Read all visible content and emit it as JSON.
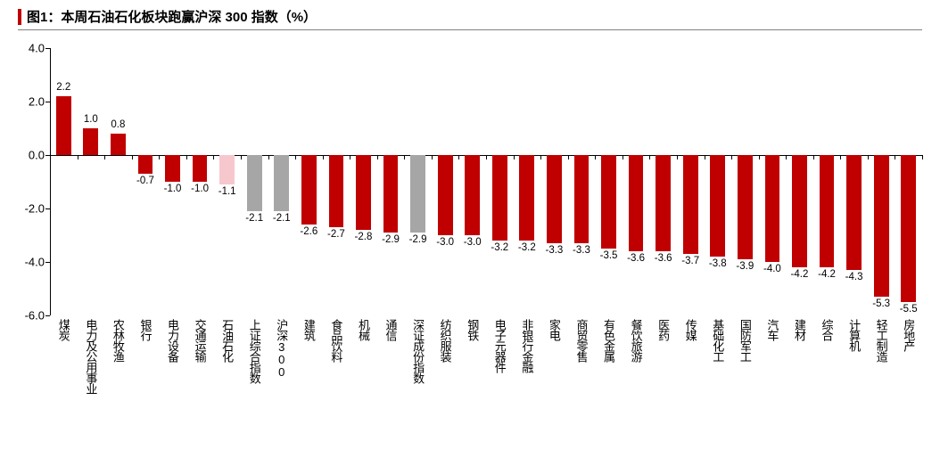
{
  "title": "图1：本周石油石化板块跑赢沪深 300 指数（%）",
  "title_accent_color": "#c00000",
  "title_fontsize": 15,
  "chart": {
    "type": "bar",
    "ylim": [
      -6.0,
      4.0
    ],
    "yticks": [
      -6.0,
      -4.0,
      -2.0,
      0.0,
      2.0,
      4.0
    ],
    "ytick_labels": [
      "-6.0",
      "-4.0",
      "-2.0",
      "0.0",
      "2.0",
      "4.0"
    ],
    "axis_color": "#000000",
    "grid_color": "#000000",
    "background_color": "#ffffff",
    "label_fontsize": 13,
    "value_label_fontsize": 11.5,
    "bar_width_ratio": 0.55,
    "colors": {
      "default": "#c00000",
      "highlight_pink": "#f7c7ce",
      "index_gray": "#a6a6a6"
    },
    "bars": [
      {
        "label": "煤炭",
        "value": 2.2,
        "color": "default"
      },
      {
        "label": "电力及公用事业",
        "value": 1.0,
        "color": "default"
      },
      {
        "label": "农林牧渔",
        "value": 0.8,
        "color": "default"
      },
      {
        "label": "银行",
        "value": -0.7,
        "color": "default"
      },
      {
        "label": "电力设备",
        "value": -1.0,
        "color": "default"
      },
      {
        "label": "交通运输",
        "value": -1.0,
        "color": "default"
      },
      {
        "label": "石油石化",
        "value": -1.1,
        "color": "highlight_pink"
      },
      {
        "label": "上证综合指数",
        "value": -2.1,
        "color": "index_gray"
      },
      {
        "label": "沪深300",
        "value": -2.1,
        "color": "index_gray"
      },
      {
        "label": "建筑",
        "value": -2.6,
        "color": "default"
      },
      {
        "label": "食品饮料",
        "value": -2.7,
        "color": "default"
      },
      {
        "label": "机械",
        "value": -2.8,
        "color": "default"
      },
      {
        "label": "通信",
        "value": -2.9,
        "color": "default"
      },
      {
        "label": "深证成份指数",
        "value": -2.9,
        "color": "index_gray"
      },
      {
        "label": "纺织服装",
        "value": -3.0,
        "color": "default"
      },
      {
        "label": "钢铁",
        "value": -3.0,
        "color": "default"
      },
      {
        "label": "电子元器件",
        "value": -3.2,
        "color": "default"
      },
      {
        "label": "非银行金融",
        "value": -3.2,
        "color": "default"
      },
      {
        "label": "家电",
        "value": -3.3,
        "color": "default"
      },
      {
        "label": "商贸零售",
        "value": -3.3,
        "color": "default"
      },
      {
        "label": "有色金属",
        "value": -3.5,
        "color": "default"
      },
      {
        "label": "餐饮旅游",
        "value": -3.6,
        "color": "default"
      },
      {
        "label": "医药",
        "value": -3.6,
        "color": "default"
      },
      {
        "label": "传媒",
        "value": -3.7,
        "color": "default"
      },
      {
        "label": "基础化工",
        "value": -3.8,
        "color": "default"
      },
      {
        "label": "国防军工",
        "value": -3.9,
        "color": "default"
      },
      {
        "label": "汽车",
        "value": -4.0,
        "color": "default"
      },
      {
        "label": "建材",
        "value": -4.2,
        "color": "default"
      },
      {
        "label": "综合",
        "value": -4.2,
        "color": "default"
      },
      {
        "label": "计算机",
        "value": -4.3,
        "color": "default"
      },
      {
        "label": "轻工制造",
        "value": -5.3,
        "color": "default"
      },
      {
        "label": "房地产",
        "value": -5.5,
        "color": "default"
      }
    ]
  }
}
